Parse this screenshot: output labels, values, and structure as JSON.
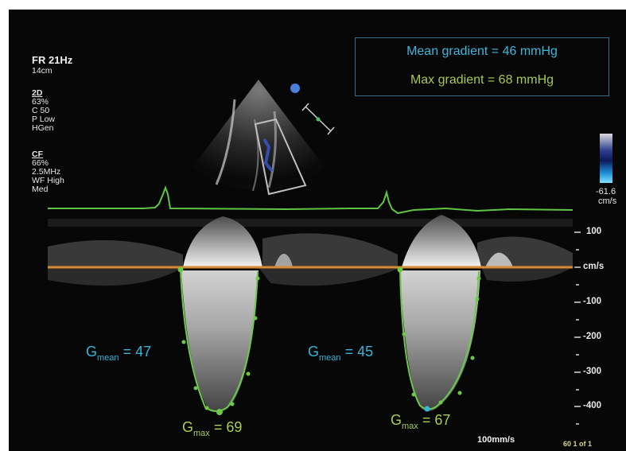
{
  "settings": {
    "frame_rate": "FR 21Hz",
    "depth": "14cm",
    "mode_2d": {
      "header": "2D",
      "lines": [
        "63%",
        "C 50",
        "P Low",
        "HGen"
      ]
    },
    "mode_cf": {
      "header": "CF",
      "lines": [
        "66%",
        "2.5MHz",
        "WF High",
        "Med"
      ]
    }
  },
  "gradient_box": {
    "mean": "Mean gradient = 46 mmHg",
    "max": "Max gradient = 68 mmHg"
  },
  "color_scale": {
    "value": "-61.6",
    "unit": "cm/s"
  },
  "velocity_scale": {
    "labels": [
      "100",
      "cm/s",
      "-100",
      "-200",
      "-300",
      "-400"
    ]
  },
  "measurements": [
    {
      "mean_symbol": "G",
      "mean_sub": "mean",
      "mean_value": "= 47",
      "max_symbol": "G",
      "max_sub": "max",
      "max_value": "= 69"
    },
    {
      "mean_symbol": "G",
      "mean_sub": "mean",
      "mean_value": "= 45",
      "max_symbol": "G",
      "max_sub": "max",
      "max_value": "= 67"
    }
  ],
  "footer": {
    "sweep_speed": "100mm/s",
    "frame_counter": "60 1 of 1"
  },
  "colors": {
    "accent_cyan": "#3bb8dc",
    "accent_lime": "#a6c94e",
    "trace_green": "#6cc94a",
    "baseline_orange": "#d98a33"
  }
}
